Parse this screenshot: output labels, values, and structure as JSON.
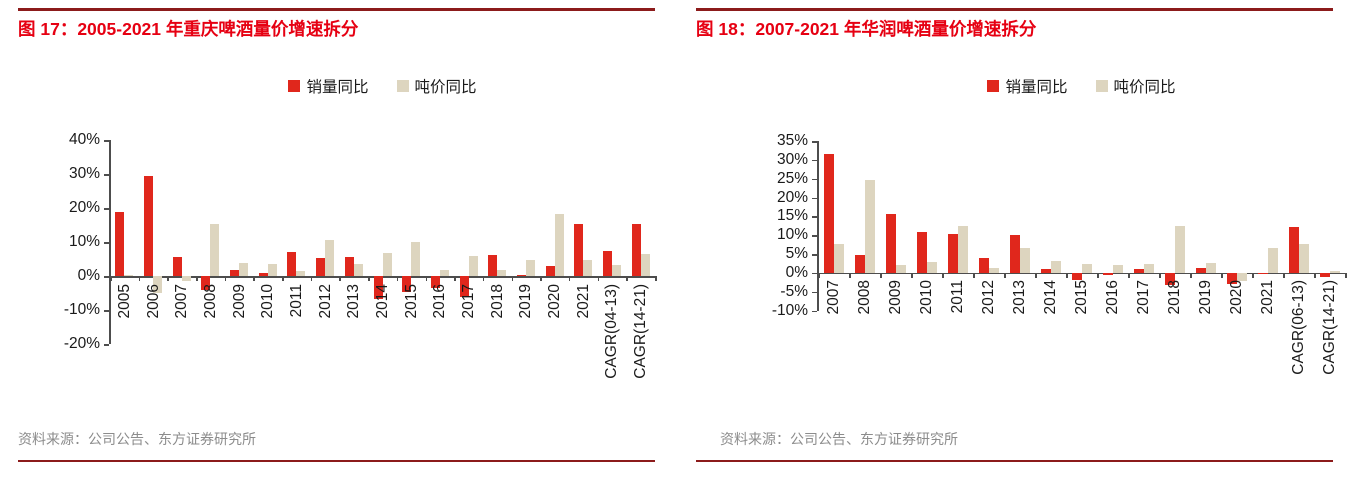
{
  "colors": {
    "title_red": "#e60012",
    "bar_red": "#e0271c",
    "bar_beige": "#ddd5bf",
    "rule_dark_red": "#8c1b1b",
    "source_gray": "#8c8c8c",
    "axis_gray": "#4d4d4d",
    "label_black": "#1a1a1a"
  },
  "chart_data": [
    {
      "type": "bar",
      "title": "图 17：2005-2021 年重庆啤酒量价增速拆分",
      "source": "资料来源：公司公告、东方证券研究所",
      "legend_position": "top",
      "grid": false,
      "ylim": [
        -20,
        40
      ],
      "yticks": [
        40,
        30,
        20,
        10,
        0,
        -10,
        -20
      ],
      "ytick_suffix": "%",
      "categories": [
        "2005",
        "2006",
        "2007",
        "2008",
        "2009",
        "2010",
        "2011",
        "2012",
        "2013",
        "2014",
        "2015",
        "2016",
        "2017",
        "2018",
        "2019",
        "2020",
        "2021",
        "CAGR(04-13)",
        "CAGR(14-21)"
      ],
      "series": [
        {
          "name": "销量同比",
          "color_key": "bar_red",
          "values": [
            18.8,
            29.5,
            5.6,
            -4.0,
            1.8,
            1.0,
            7.0,
            5.3,
            5.5,
            -6.8,
            -4.6,
            -3.6,
            -6.3,
            6.2,
            0.3,
            2.8,
            15.4,
            7.4,
            15.3
          ]
        },
        {
          "name": "吨价同比",
          "color_key": "bar_beige",
          "values": [
            0.4,
            -5.0,
            -1.6,
            15.2,
            3.7,
            3.5,
            1.4,
            10.6,
            3.6,
            6.8,
            10.1,
            1.7,
            5.9,
            1.9,
            4.8,
            18.2,
            4.8,
            3.3,
            6.5
          ]
        }
      ]
    },
    {
      "type": "bar",
      "title": "图 18：2007-2021 年华润啤酒量价增速拆分",
      "source": "资料来源：公司公告、东方证券研究所",
      "legend_position": "top",
      "grid": false,
      "ylim": [
        -10,
        35
      ],
      "yticks": [
        35,
        30,
        25,
        20,
        15,
        10,
        5,
        0,
        -5,
        -10
      ],
      "ytick_suffix": "%",
      "categories": [
        "2007",
        "2008",
        "2009",
        "2010",
        "2011",
        "2012",
        "2013",
        "2014",
        "2015",
        "2016",
        "2017",
        "2018",
        "2019",
        "2020",
        "2021",
        "CAGR(06-13)",
        "CAGR(14-21)"
      ],
      "series": [
        {
          "name": "销量同比",
          "color_key": "bar_red",
          "values": [
            31.5,
            4.8,
            15.6,
            10.8,
            10.4,
            4.0,
            10.2,
            1.1,
            -1.9,
            -0.6,
            1.1,
            -3.2,
            1.4,
            -2.8,
            -0.4,
            12.3,
            -1.1
          ]
        },
        {
          "name": "吨价同比",
          "color_key": "bar_beige",
          "values": [
            7.7,
            24.7,
            2.2,
            2.9,
            12.5,
            1.2,
            6.6,
            3.2,
            2.3,
            2.0,
            2.5,
            12.4,
            2.7,
            -2.1,
            6.5,
            7.8,
            0.5
          ]
        }
      ]
    }
  ]
}
